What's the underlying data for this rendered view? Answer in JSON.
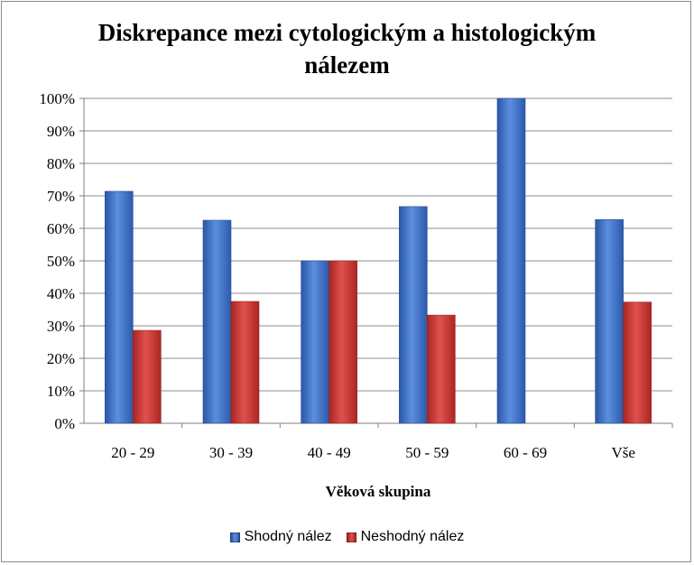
{
  "chart_data": {
    "type": "bar",
    "title_lines": [
      "Diskrepance mezi cytologickým a histologickým",
      "nálezem"
    ],
    "xlabel": "Věková skupina",
    "ylabel": "",
    "categories": [
      "20 - 29",
      "30 - 39",
      "40 - 49",
      "50 - 59",
      "60 - 69",
      "Vše"
    ],
    "series": [
      {
        "name": "Shodný nález",
        "values": [
          71.4,
          62.5,
          50,
          66.7,
          100,
          62.7
        ],
        "color": "#3a6fc4"
      },
      {
        "name": "Neshodný nález",
        "values": [
          28.6,
          37.5,
          50,
          33.3,
          0,
          37.3
        ],
        "color": "#c8312e"
      }
    ],
    "y_ticks": [
      "0%",
      "10%",
      "20%",
      "30%",
      "40%",
      "50%",
      "60%",
      "70%",
      "80%",
      "90%",
      "100%"
    ],
    "ylim": [
      0,
      100
    ],
    "grid": true,
    "legend_position": "bottom"
  }
}
